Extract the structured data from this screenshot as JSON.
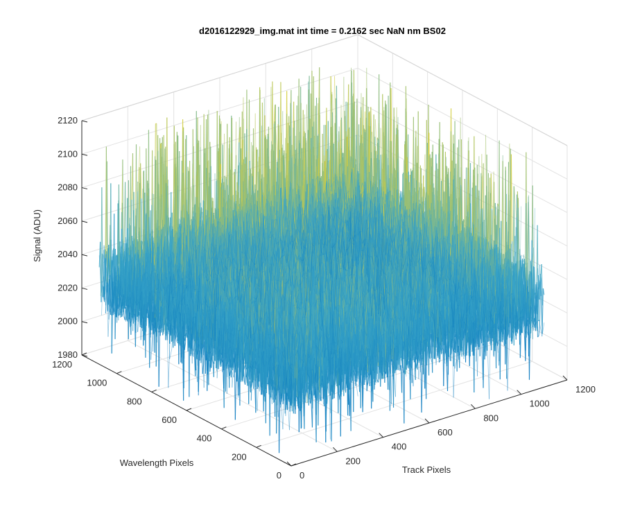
{
  "chart_data": {
    "type": "surface3d",
    "title": "d2016122929_img.mat int time = 0.2162 sec  NaN nm BS02",
    "xlabel": "Track Pixels",
    "ylabel": "Wavelength Pixels",
    "zlabel": "Signal (ADU)",
    "x_ticks": [
      "0",
      "200",
      "400",
      "600",
      "800",
      "1000",
      "1200"
    ],
    "y_ticks": [
      "0",
      "200",
      "400",
      "600",
      "800",
      "1000",
      "1200"
    ],
    "z_ticks": [
      "1980",
      "2000",
      "2020",
      "2040",
      "2060",
      "2080",
      "2100",
      "2120"
    ],
    "xlim": [
      0,
      1200
    ],
    "ylim": [
      0,
      1200
    ],
    "zlim": [
      1980,
      2120
    ],
    "data_extent": {
      "x": [
        0,
        1100
      ],
      "y": [
        0,
        1100
      ]
    },
    "signal": {
      "baseline": 2030,
      "center_bump": 12,
      "noise_amplitude": 22,
      "spike_max": 2115
    },
    "grid": true,
    "colormap": "parula",
    "colors": {
      "low": "#0072BD",
      "mid": "#3FA9C9",
      "high": "#D9CF3A"
    }
  }
}
